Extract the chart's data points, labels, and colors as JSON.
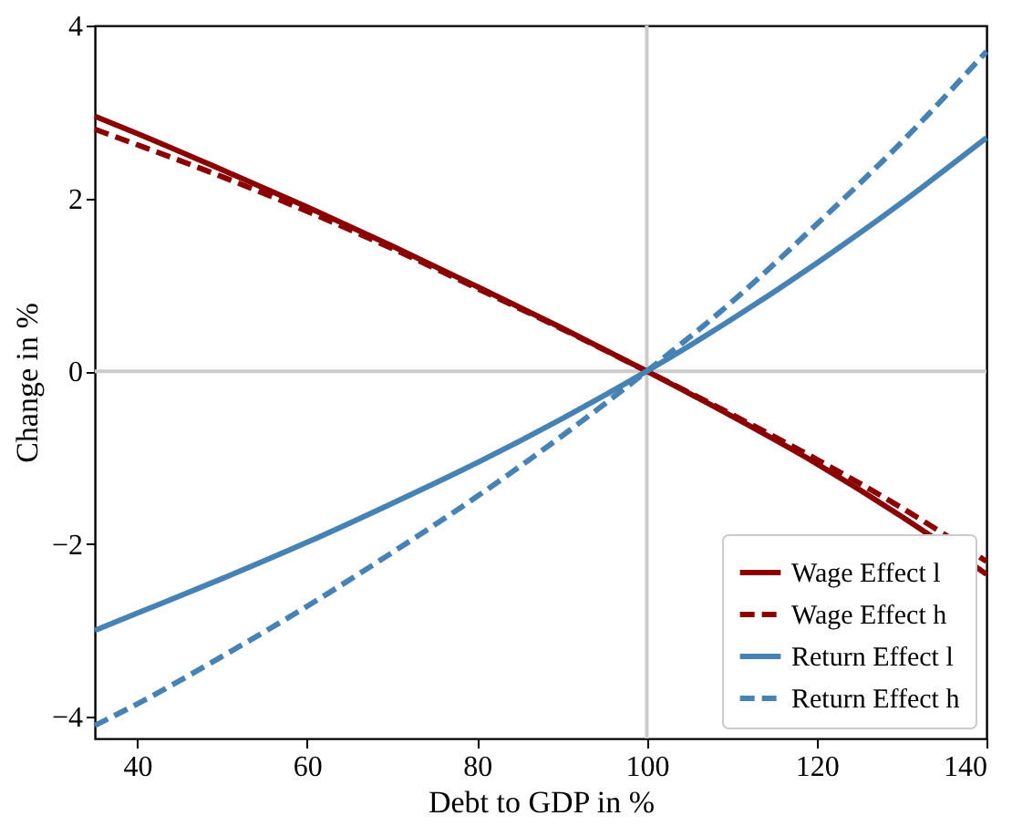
{
  "chart_data": {
    "type": "line",
    "xlabel": "Debt to GDP in %",
    "ylabel": "Change in %",
    "x": [
      35,
      40,
      50,
      60,
      70,
      80,
      90,
      100,
      110,
      120,
      130,
      140
    ],
    "series": [
      {
        "name": "Wage Effect l",
        "color": "#8b0000",
        "line_style": "solid",
        "values": [
          2.95,
          2.75,
          2.33,
          1.9,
          1.45,
          0.98,
          0.5,
          0,
          -0.52,
          -1.07,
          -1.68,
          -2.35
        ]
      },
      {
        "name": "Wage Effect h",
        "color": "#8b0000",
        "line_style": "dashed",
        "values": [
          2.8,
          2.62,
          2.25,
          1.85,
          1.42,
          0.96,
          0.49,
          0,
          -0.5,
          -1.02,
          -1.58,
          -2.2
        ]
      },
      {
        "name": "Return Effect l",
        "color": "#4682b4",
        "line_style": "solid",
        "values": [
          -3.0,
          -2.8,
          -2.4,
          -1.98,
          -1.53,
          -1.06,
          -0.55,
          0,
          0.6,
          1.25,
          1.95,
          2.7
        ]
      },
      {
        "name": "Return Effect h",
        "color": "#4682b4",
        "line_style": "dashed",
        "values": [
          -4.1,
          -3.85,
          -3.3,
          -2.72,
          -2.1,
          -1.45,
          -0.75,
          0,
          0.8,
          1.7,
          2.65,
          3.7
        ]
      }
    ],
    "xlim": [
      35,
      140
    ],
    "xticks": [
      40,
      60,
      80,
      100,
      120,
      140
    ],
    "ylim": [
      -4.25,
      4
    ],
    "yticks": [
      {
        "value": -4,
        "label": "−4"
      },
      {
        "value": -2,
        "label": "−2"
      },
      0,
      2,
      4
    ],
    "ref_lines": [
      {
        "axis": "x",
        "value": 100,
        "color": "#cccccc"
      },
      {
        "axis": "y",
        "value": 0,
        "color": "#cccccc"
      }
    ],
    "legend": "bottom right",
    "grid": false
  }
}
